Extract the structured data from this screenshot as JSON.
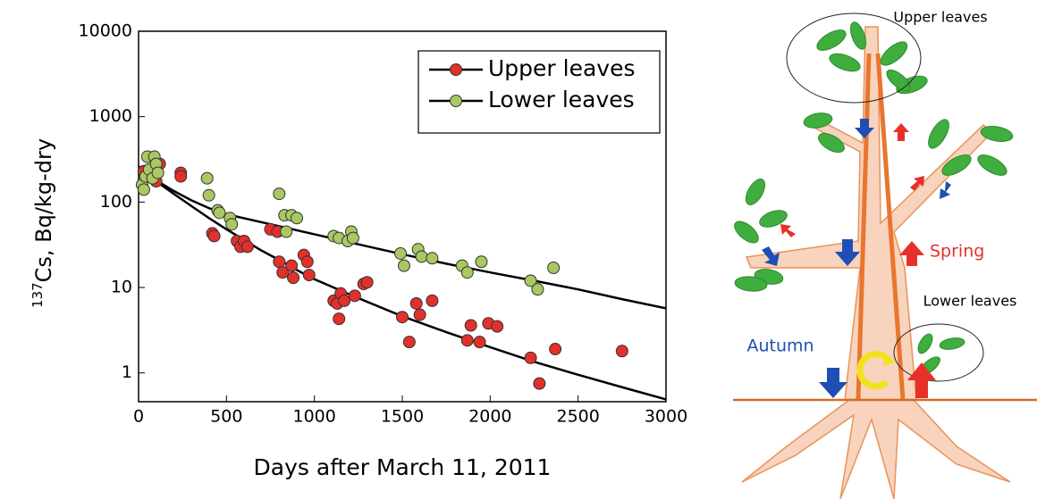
{
  "chart_data": {
    "type": "scatter",
    "xlabel": "Days after March 11, 2011",
    "ylabel_sup": "137",
    "ylabel": "Cs, Bq/kg-dry",
    "xlim": [
      0,
      3000
    ],
    "xticks": [
      0,
      500,
      1000,
      1500,
      2000,
      2500,
      3000
    ],
    "ylim": [
      0.46,
      10000
    ],
    "yticks": [
      1,
      10,
      100,
      1000,
      10000
    ],
    "log_y": true,
    "legend": "upper right",
    "series": [
      {
        "name": "Upper leaves",
        "color": "#e2302b",
        "line_color": "#000000",
        "x": [
          30,
          60,
          100,
          120,
          240,
          240,
          420,
          430,
          560,
          580,
          600,
          620,
          750,
          790,
          800,
          820,
          870,
          880,
          940,
          960,
          970,
          1110,
          1130,
          1140,
          1150,
          1170,
          1230,
          1280,
          1300,
          1500,
          1540,
          1580,
          1600,
          1670,
          1870,
          1890,
          1940,
          1990,
          2040,
          2230,
          2280,
          2370,
          2750
        ],
        "values": [
          230,
          200,
          175,
          280,
          220,
          200,
          43,
          40,
          35,
          30,
          35,
          30,
          48,
          45,
          20,
          15,
          18,
          13,
          24,
          20,
          14,
          7,
          6.5,
          4.3,
          8.5,
          7,
          8,
          11,
          11.5,
          4.5,
          2.3,
          6.5,
          4.8,
          7,
          2.4,
          3.6,
          2.3,
          3.8,
          3.5,
          1.5,
          0.75,
          1.9,
          1.8
        ],
        "fit": {
          "x": [
            0,
            100,
            200,
            300,
            400,
            500,
            600,
            700,
            800,
            900,
            1000,
            1250,
            1500,
            1750,
            2000,
            2250,
            2500,
            2750,
            3000
          ],
          "values": [
            260,
            175,
            125,
            90,
            65,
            48,
            36,
            27,
            21,
            16,
            12.5,
            7.5,
            4.6,
            3,
            2,
            1.35,
            0.95,
            0.68,
            0.49
          ]
        }
      },
      {
        "name": "Lower leaves",
        "color": "#a9c862",
        "line_color": "#000000",
        "x": [
          20,
          30,
          40,
          50,
          60,
          80,
          90,
          100,
          110,
          390,
          400,
          450,
          460,
          520,
          530,
          800,
          830,
          840,
          870,
          900,
          1110,
          1140,
          1190,
          1210,
          1220,
          1490,
          1510,
          1590,
          1610,
          1670,
          1840,
          1870,
          1950,
          2230,
          2270,
          2360
        ],
        "values": [
          160,
          140,
          200,
          340,
          240,
          190,
          340,
          280,
          220,
          190,
          120,
          80,
          75,
          65,
          55,
          125,
          70,
          45,
          70,
          65,
          40,
          38,
          35,
          45,
          38,
          25,
          18,
          28,
          23,
          22,
          18,
          15,
          20,
          12,
          9.5,
          17
        ],
        "fit": {
          "x": [
            0,
            100,
            200,
            300,
            400,
            500,
            750,
            1000,
            1250,
            1500,
            1750,
            2000,
            2250,
            2500,
            2750,
            3000
          ],
          "values": [
            260,
            180,
            135,
            105,
            85,
            72,
            55,
            42,
            32,
            24.5,
            19,
            15,
            12,
            9.5,
            7.3,
            5.7
          ]
        }
      }
    ]
  },
  "diagram": {
    "labels": {
      "upper": "Upper leaves",
      "spring": "Spring",
      "lower": "Lower leaves",
      "autumn": "Autumn"
    }
  }
}
